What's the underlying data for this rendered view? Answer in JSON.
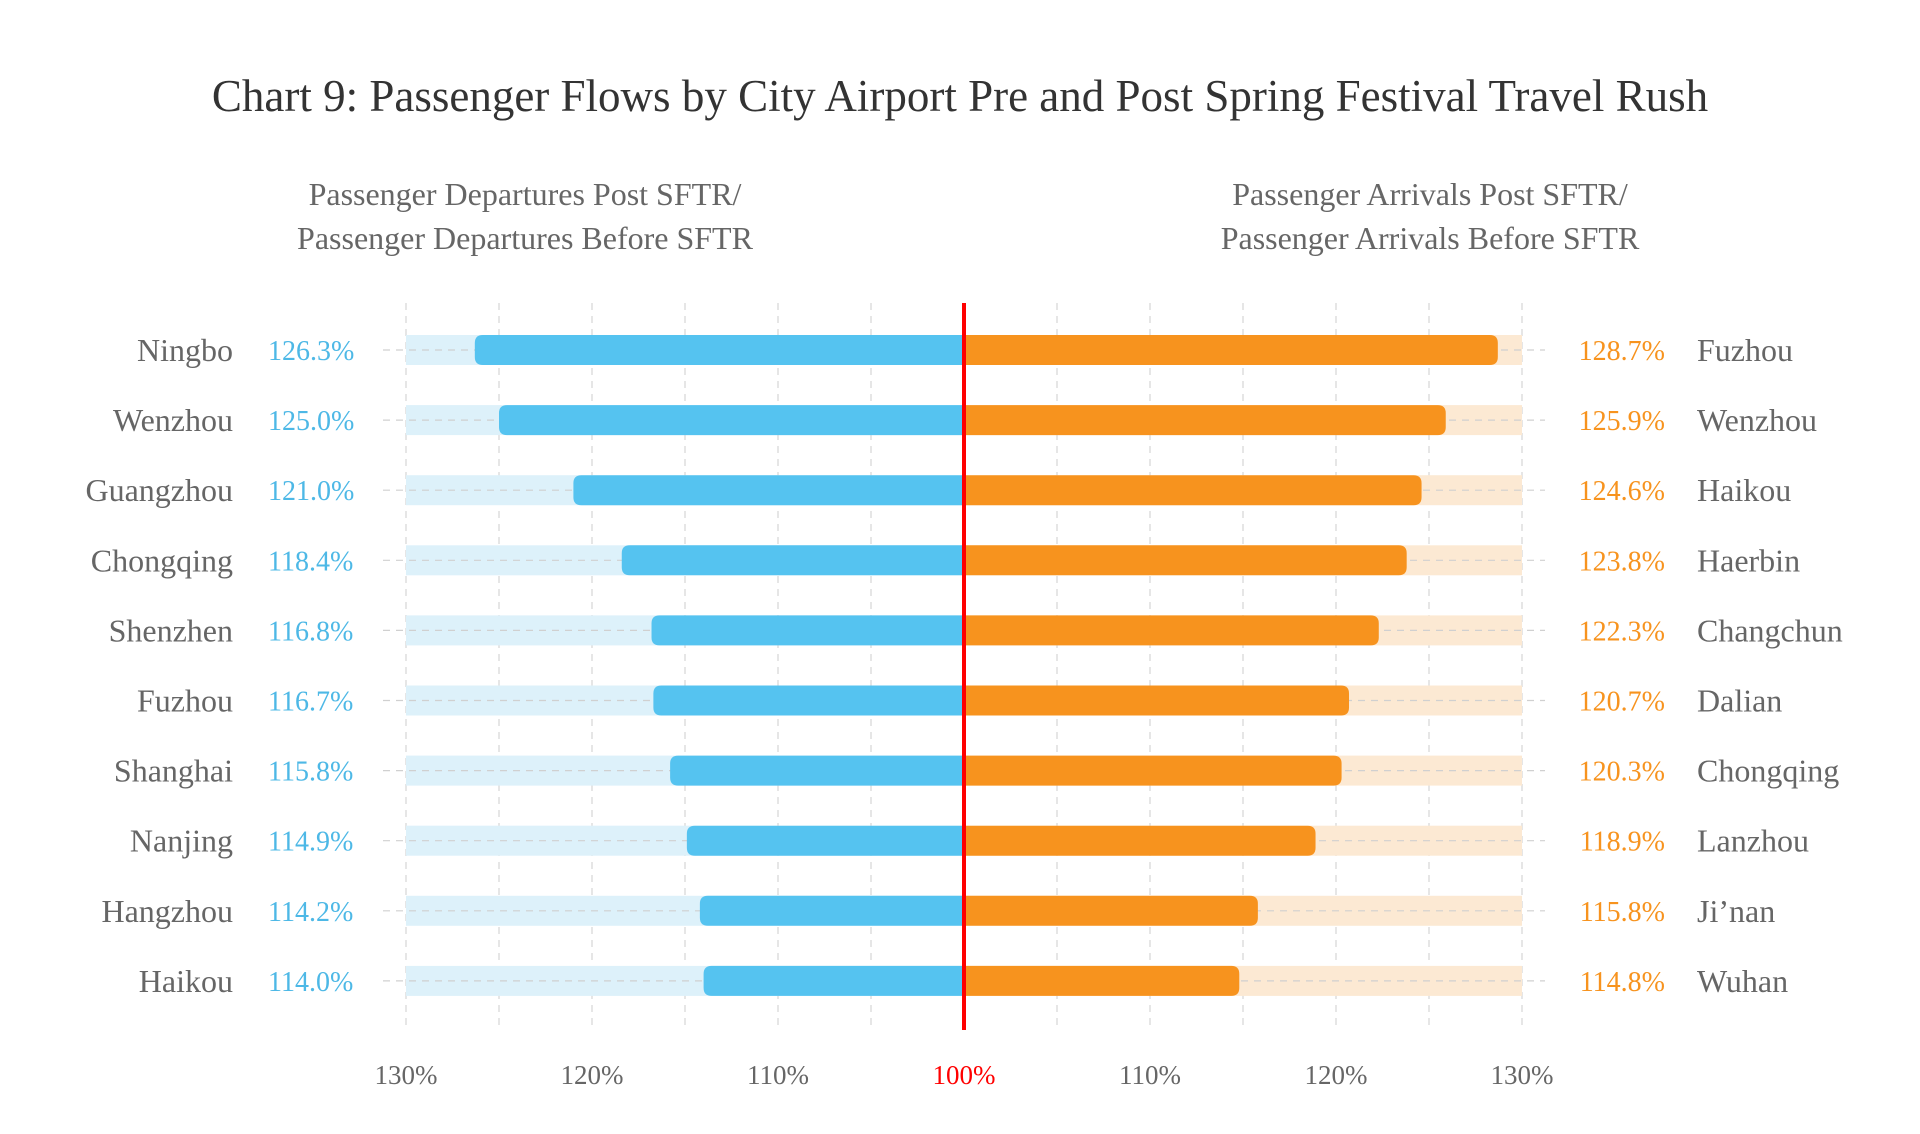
{
  "chart_data": {
    "type": "bar",
    "title": "Chart 9: Passenger Flows by City Airport Pre and Post Spring Festival Travel Rush",
    "left_subtitle": [
      "Passenger Departures Post SFTR/",
      "Passenger Departures Before SFTR"
    ],
    "right_subtitle": [
      "Passenger Arrivals Post SFTR/",
      "Passenger Arrivals Before SFTR"
    ],
    "departures": {
      "cities": [
        "Ningbo",
        "Wenzhou",
        "Guangzhou",
        "Chongqing",
        "Shenzhen",
        "Fuzhou",
        "Shanghai",
        "Nanjing",
        "Hangzhou",
        "Haikou"
      ],
      "values": [
        126.3,
        125.0,
        121.0,
        118.4,
        116.8,
        116.7,
        115.8,
        114.9,
        114.2,
        114.0
      ],
      "labels": [
        "126.3%",
        "125.0%",
        "121.0%",
        "118.4%",
        "116.8%",
        "116.7%",
        "115.8%",
        "114.9%",
        "114.2%",
        "114.0%"
      ]
    },
    "arrivals": {
      "cities": [
        "Fuzhou",
        "Wenzhou",
        "Haikou",
        "Haerbin",
        "Changchun",
        "Dalian",
        "Chongqing",
        "Lanzhou",
        "Ji’nan",
        "Wuhan"
      ],
      "values": [
        128.7,
        125.9,
        124.6,
        123.8,
        122.3,
        120.7,
        120.3,
        118.9,
        115.8,
        114.8
      ],
      "labels": [
        "128.7%",
        "125.9%",
        "124.6%",
        "123.8%",
        "122.3%",
        "120.7%",
        "120.3%",
        "118.9%",
        "115.8%",
        "114.8%"
      ]
    },
    "xlim": [
      100,
      130
    ],
    "x_ticks_left": [
      "130%",
      "120%",
      "110%"
    ],
    "x_tick_center": "100%",
    "x_ticks_right": [
      "110%",
      "120%",
      "130%"
    ],
    "colors": {
      "departures": "#55C3F0",
      "departures_bg": "#DDF1FA",
      "departures_text": "#4DB8E6",
      "arrivals": "#F7931E",
      "arrivals_bg": "#FCE9D3",
      "arrivals_text": "#F7931E",
      "center_line": "#FF0000",
      "city_text": "#666666"
    }
  }
}
